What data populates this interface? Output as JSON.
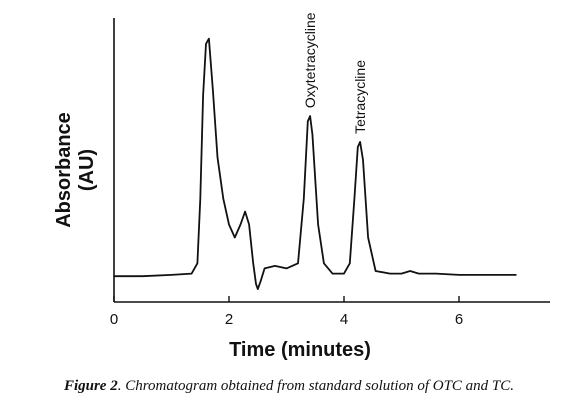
{
  "chart_data": {
    "type": "line",
    "xlabel": "Time (minutes)",
    "ylabel_line1": "Absorbance",
    "ylabel_line2": "(AU)",
    "xlim": [
      0,
      7.3
    ],
    "ylim": [
      -0.1,
      1.0
    ],
    "x_ticks": [
      0,
      2,
      4,
      6
    ],
    "grid": false,
    "series": [
      {
        "values": [
          [
            0.0,
            0.0
          ],
          [
            0.5,
            0.0
          ],
          [
            1.0,
            0.005
          ],
          [
            1.35,
            0.01
          ],
          [
            1.45,
            0.05
          ],
          [
            1.5,
            0.3
          ],
          [
            1.55,
            0.7
          ],
          [
            1.6,
            0.9
          ],
          [
            1.65,
            0.92
          ],
          [
            1.72,
            0.72
          ],
          [
            1.8,
            0.46
          ],
          [
            1.9,
            0.3
          ],
          [
            2.0,
            0.2
          ],
          [
            2.1,
            0.15
          ],
          [
            2.2,
            0.2
          ],
          [
            2.28,
            0.25
          ],
          [
            2.35,
            0.2
          ],
          [
            2.42,
            0.05
          ],
          [
            2.47,
            -0.03
          ],
          [
            2.5,
            -0.05
          ],
          [
            2.55,
            -0.02
          ],
          [
            2.62,
            0.03
          ],
          [
            2.8,
            0.04
          ],
          [
            3.0,
            0.03
          ],
          [
            3.2,
            0.05
          ],
          [
            3.3,
            0.3
          ],
          [
            3.37,
            0.6
          ],
          [
            3.41,
            0.62
          ],
          [
            3.45,
            0.55
          ],
          [
            3.55,
            0.2
          ],
          [
            3.65,
            0.05
          ],
          [
            3.8,
            0.01
          ],
          [
            4.0,
            0.01
          ],
          [
            4.1,
            0.05
          ],
          [
            4.18,
            0.3
          ],
          [
            4.24,
            0.5
          ],
          [
            4.28,
            0.52
          ],
          [
            4.33,
            0.45
          ],
          [
            4.42,
            0.15
          ],
          [
            4.55,
            0.02
          ],
          [
            4.8,
            0.01
          ],
          [
            5.0,
            0.01
          ],
          [
            5.15,
            0.02
          ],
          [
            5.3,
            0.01
          ],
          [
            5.6,
            0.01
          ],
          [
            6.0,
            0.005
          ],
          [
            6.5,
            0.005
          ],
          [
            7.0,
            0.005
          ]
        ]
      }
    ],
    "annotations": [
      {
        "text": "Oxytetracycline",
        "x": 3.41
      },
      {
        "text": "Tetracycline",
        "x": 4.28
      }
    ]
  },
  "caption": {
    "label": "Figure 2",
    "text": ". Chromatogram obtained from standard solution of OTC and TC."
  }
}
